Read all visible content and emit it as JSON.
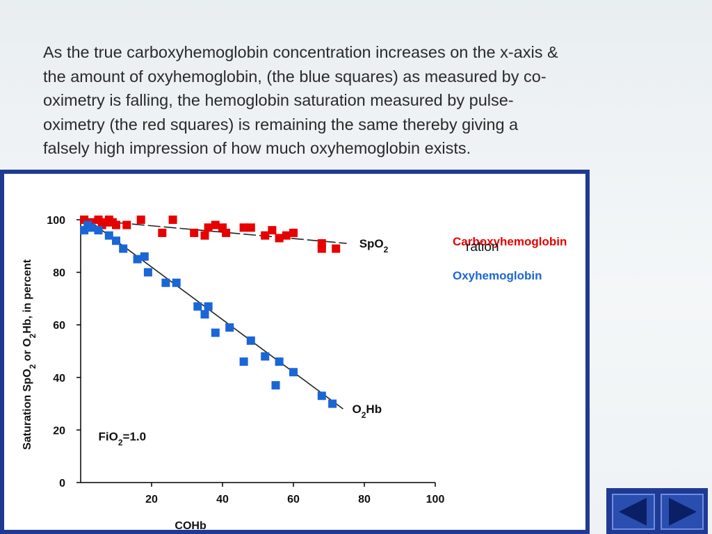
{
  "slide": {
    "text": "As the true carboxyhemoglobin concentration increases on the x-axis  &\nthe amount of oxyhemoglobin, (the blue squares) as measured by co-\noximetry is falling, the hemoglobin saturation  measured by pulse-\noximetry (the red squares) is remaining the same thereby giving a\nfalsely high impression of how much oxyhemoglobin exists."
  },
  "legend": {
    "carboxy_label": "Carboxyhemoglobin",
    "oxy_label": "Oxyhemoglobin",
    "overlap_fragment": "ration",
    "carboxy_color": "#e60000",
    "oxy_color": "#1a66d6"
  },
  "nav": {
    "prev_icon": "triangle-left-icon",
    "next_icon": "triangle-right-icon"
  },
  "chart_data": {
    "type": "scatter",
    "title": "",
    "xlabel": "COHb",
    "ylabel": "Saturation SpO2 or O2Hb, in percent",
    "xlim": [
      0,
      100
    ],
    "ylim": [
      0,
      100
    ],
    "x_ticks": [
      20,
      40,
      60,
      80,
      100
    ],
    "y_ticks": [
      0,
      20,
      40,
      60,
      80,
      100
    ],
    "grid": false,
    "annotation": "FiO2=1.0",
    "series": [
      {
        "name": "SpO2",
        "color": "#e60000",
        "marker": "square",
        "points": [
          [
            1,
            100
          ],
          [
            3,
            99
          ],
          [
            5,
            100
          ],
          [
            6,
            98
          ],
          [
            7,
            99
          ],
          [
            8,
            100
          ],
          [
            9,
            99
          ],
          [
            10,
            98
          ],
          [
            13,
            98
          ],
          [
            17,
            100
          ],
          [
            23,
            95
          ],
          [
            26,
            100
          ],
          [
            32,
            95
          ],
          [
            35,
            94
          ],
          [
            36,
            97
          ],
          [
            38,
            98
          ],
          [
            40,
            97
          ],
          [
            41,
            95
          ],
          [
            46,
            97
          ],
          [
            48,
            97
          ],
          [
            52,
            94
          ],
          [
            54,
            96
          ],
          [
            56,
            93
          ],
          [
            58,
            94
          ],
          [
            60,
            95
          ],
          [
            68,
            91
          ],
          [
            68,
            89
          ],
          [
            72,
            89
          ]
        ],
        "fit_line": [
          [
            1,
            100
          ],
          [
            75,
            91
          ]
        ]
      },
      {
        "name": "O2Hb",
        "color": "#1a66d6",
        "marker": "square",
        "points": [
          [
            1,
            96
          ],
          [
            2,
            98
          ],
          [
            3,
            97
          ],
          [
            5,
            96
          ],
          [
            8,
            94
          ],
          [
            10,
            92
          ],
          [
            12,
            89
          ],
          [
            16,
            85
          ],
          [
            18,
            86
          ],
          [
            19,
            80
          ],
          [
            24,
            76
          ],
          [
            27,
            76
          ],
          [
            33,
            67
          ],
          [
            35,
            64
          ],
          [
            36,
            67
          ],
          [
            38,
            57
          ],
          [
            42,
            59
          ],
          [
            46,
            46
          ],
          [
            48,
            54
          ],
          [
            52,
            48
          ],
          [
            55,
            37
          ],
          [
            56,
            46
          ],
          [
            60,
            42
          ],
          [
            68,
            33
          ],
          [
            71,
            30
          ]
        ],
        "fit_line": [
          [
            2,
            100
          ],
          [
            74,
            28
          ]
        ]
      }
    ],
    "line_labels": [
      {
        "text": "SpO",
        "sub": "2",
        "at": [
          77,
          91
        ]
      },
      {
        "text": "O",
        "sub": "2",
        "suffix": "Hb",
        "at": [
          75,
          28
        ]
      }
    ]
  }
}
